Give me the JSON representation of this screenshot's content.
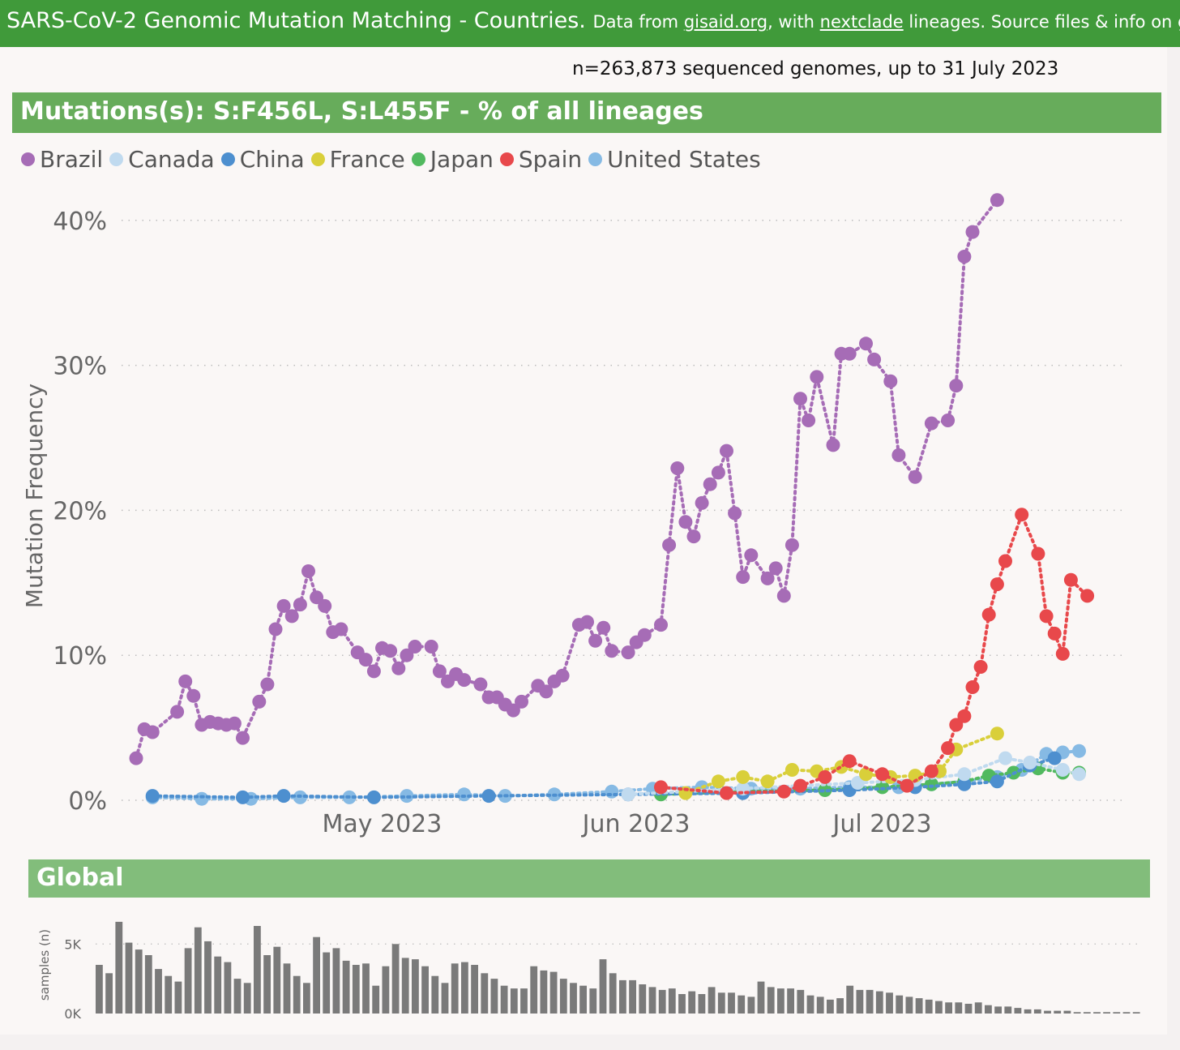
{
  "header": {
    "title": "SARS-CoV-2 Genomic Mutation Matching - Countries.",
    "source_prefix": "Data from",
    "link1": "gisaid.org",
    "mid": ", with",
    "link2": "nextclade",
    "suffix": "lineages. Source files & info on git"
  },
  "subtitle": "n=263,873 sequenced genomes, up to 31 July 2023",
  "panel_title": "Mutations(s): S:F456L, S:L455F - % of all lineages",
  "global_title": "Global",
  "colors": {
    "Brazil": "#a66cb6",
    "Canada": "#c0daef",
    "China": "#4d8fcf",
    "France": "#d9cf3a",
    "Japan": "#51b95f",
    "Spain": "#e8484b",
    "United States": "#86bae4"
  },
  "chart_data": [
    {
      "type": "line",
      "title": "Mutations(s): S:F456L, S:L455F - % of all lineages",
      "ylabel": "Mutation Frequency",
      "xlabel": "",
      "x_ticks": [
        "May 2023",
        "Jun 2023",
        "Jul 2023"
      ],
      "y_ticks": [
        "0%",
        "10%",
        "20%",
        "30%",
        "40%"
      ],
      "ylim": [
        0,
        42
      ],
      "xlim": [
        "2023-04-02",
        "2023-07-30"
      ],
      "grid": "horizontal dotted",
      "legend": "top-left",
      "series": [
        {
          "name": "Brazil",
          "points": [
            [
              "2023-04-02",
              2.9
            ],
            [
              "2023-04-03",
              4.9
            ],
            [
              "2023-04-04",
              4.7
            ],
            [
              "2023-04-07",
              6.1
            ],
            [
              "2023-04-08",
              8.2
            ],
            [
              "2023-04-09",
              7.2
            ],
            [
              "2023-04-10",
              5.2
            ],
            [
              "2023-04-11",
              5.4
            ],
            [
              "2023-04-12",
              5.3
            ],
            [
              "2023-04-13",
              5.2
            ],
            [
              "2023-04-14",
              5.3
            ],
            [
              "2023-04-15",
              4.3
            ],
            [
              "2023-04-17",
              6.8
            ],
            [
              "2023-04-18",
              8.0
            ],
            [
              "2023-04-19",
              11.8
            ],
            [
              "2023-04-20",
              13.4
            ],
            [
              "2023-04-21",
              12.7
            ],
            [
              "2023-04-22",
              13.5
            ],
            [
              "2023-04-23",
              15.8
            ],
            [
              "2023-04-24",
              14.0
            ],
            [
              "2023-04-25",
              13.4
            ],
            [
              "2023-04-26",
              11.6
            ],
            [
              "2023-04-27",
              11.8
            ],
            [
              "2023-04-29",
              10.2
            ],
            [
              "2023-04-30",
              9.7
            ],
            [
              "2023-05-01",
              8.9
            ],
            [
              "2023-05-02",
              10.5
            ],
            [
              "2023-05-03",
              10.3
            ],
            [
              "2023-05-04",
              9.1
            ],
            [
              "2023-05-05",
              10.0
            ],
            [
              "2023-05-06",
              10.6
            ],
            [
              "2023-05-08",
              10.6
            ],
            [
              "2023-05-09",
              8.9
            ],
            [
              "2023-05-10",
              8.2
            ],
            [
              "2023-05-11",
              8.7
            ],
            [
              "2023-05-12",
              8.3
            ],
            [
              "2023-05-14",
              8.0
            ],
            [
              "2023-05-15",
              7.1
            ],
            [
              "2023-05-16",
              7.1
            ],
            [
              "2023-05-17",
              6.6
            ],
            [
              "2023-05-18",
              6.2
            ],
            [
              "2023-05-19",
              6.8
            ],
            [
              "2023-05-21",
              7.9
            ],
            [
              "2023-05-22",
              7.5
            ],
            [
              "2023-05-23",
              8.2
            ],
            [
              "2023-05-24",
              8.6
            ],
            [
              "2023-05-26",
              12.1
            ],
            [
              "2023-05-27",
              12.3
            ],
            [
              "2023-05-28",
              11.0
            ],
            [
              "2023-05-29",
              11.9
            ],
            [
              "2023-05-30",
              10.3
            ],
            [
              "2023-06-01",
              10.2
            ],
            [
              "2023-06-02",
              10.9
            ],
            [
              "2023-06-03",
              11.4
            ],
            [
              "2023-06-05",
              12.1
            ],
            [
              "2023-06-06",
              17.6
            ],
            [
              "2023-06-07",
              22.9
            ],
            [
              "2023-06-08",
              19.2
            ],
            [
              "2023-06-09",
              18.2
            ],
            [
              "2023-06-10",
              20.5
            ],
            [
              "2023-06-11",
              21.8
            ],
            [
              "2023-06-12",
              22.6
            ],
            [
              "2023-06-13",
              24.1
            ],
            [
              "2023-06-14",
              19.8
            ],
            [
              "2023-06-15",
              15.4
            ],
            [
              "2023-06-16",
              16.9
            ],
            [
              "2023-06-18",
              15.3
            ],
            [
              "2023-06-19",
              16.0
            ],
            [
              "2023-06-20",
              14.1
            ],
            [
              "2023-06-21",
              17.6
            ],
            [
              "2023-06-22",
              27.7
            ],
            [
              "2023-06-23",
              26.2
            ],
            [
              "2023-06-24",
              29.2
            ],
            [
              "2023-06-26",
              24.5
            ],
            [
              "2023-06-27",
              30.8
            ],
            [
              "2023-06-28",
              30.8
            ],
            [
              "2023-06-30",
              31.5
            ],
            [
              "2023-07-01",
              30.4
            ],
            [
              "2023-07-03",
              28.9
            ],
            [
              "2023-07-04",
              23.8
            ],
            [
              "2023-07-06",
              22.3
            ],
            [
              "2023-07-08",
              26.0
            ],
            [
              "2023-07-10",
              26.2
            ],
            [
              "2023-07-11",
              28.6
            ],
            [
              "2023-07-12",
              37.5
            ],
            [
              "2023-07-13",
              39.2
            ],
            [
              "2023-07-16",
              41.4
            ]
          ]
        },
        {
          "name": "Spain",
          "points": [
            [
              "2023-06-05",
              0.9
            ],
            [
              "2023-06-13",
              0.5
            ],
            [
              "2023-06-20",
              0.6
            ],
            [
              "2023-06-22",
              1.0
            ],
            [
              "2023-06-25",
              1.6
            ],
            [
              "2023-06-28",
              2.7
            ],
            [
              "2023-07-02",
              1.8
            ],
            [
              "2023-07-05",
              1.0
            ],
            [
              "2023-07-08",
              2.0
            ],
            [
              "2023-07-10",
              3.6
            ],
            [
              "2023-07-11",
              5.2
            ],
            [
              "2023-07-12",
              5.8
            ],
            [
              "2023-07-13",
              7.8
            ],
            [
              "2023-07-14",
              9.2
            ],
            [
              "2023-07-15",
              12.8
            ],
            [
              "2023-07-16",
              14.9
            ],
            [
              "2023-07-17",
              16.5
            ],
            [
              "2023-07-19",
              19.7
            ],
            [
              "2023-07-21",
              17.0
            ],
            [
              "2023-07-22",
              12.7
            ],
            [
              "2023-07-23",
              11.5
            ],
            [
              "2023-07-24",
              10.1
            ],
            [
              "2023-07-25",
              15.2
            ],
            [
              "2023-07-27",
              14.1
            ]
          ]
        },
        {
          "name": "France",
          "points": [
            [
              "2023-06-08",
              0.5
            ],
            [
              "2023-06-12",
              1.3
            ],
            [
              "2023-06-15",
              1.6
            ],
            [
              "2023-06-18",
              1.3
            ],
            [
              "2023-06-21",
              2.1
            ],
            [
              "2023-06-24",
              2.0
            ],
            [
              "2023-06-27",
              2.3
            ],
            [
              "2023-06-30",
              1.8
            ],
            [
              "2023-07-03",
              1.6
            ],
            [
              "2023-07-06",
              1.7
            ],
            [
              "2023-07-09",
              2.0
            ],
            [
              "2023-07-11",
              3.5
            ],
            [
              "2023-07-16",
              4.6
            ]
          ]
        },
        {
          "name": "Canada",
          "points": [
            [
              "2023-06-01",
              0.4
            ],
            [
              "2023-06-15",
              0.8
            ],
            [
              "2023-06-29",
              1.2
            ],
            [
              "2023-07-06",
              1.4
            ],
            [
              "2023-07-12",
              1.8
            ],
            [
              "2023-07-17",
              2.9
            ],
            [
              "2023-07-20",
              2.6
            ],
            [
              "2023-07-24",
              2.1
            ],
            [
              "2023-07-26",
              1.8
            ]
          ]
        },
        {
          "name": "China",
          "points": [
            [
              "2023-04-04",
              0.3
            ],
            [
              "2023-04-15",
              0.2
            ],
            [
              "2023-04-20",
              0.3
            ],
            [
              "2023-05-01",
              0.2
            ],
            [
              "2023-05-15",
              0.3
            ],
            [
              "2023-06-01",
              0.4
            ],
            [
              "2023-06-15",
              0.5
            ],
            [
              "2023-06-28",
              0.7
            ],
            [
              "2023-07-06",
              0.9
            ],
            [
              "2023-07-12",
              1.1
            ],
            [
              "2023-07-16",
              1.3
            ],
            [
              "2023-07-20",
              2.4
            ],
            [
              "2023-07-23",
              2.9
            ]
          ]
        },
        {
          "name": "Japan",
          "points": [
            [
              "2023-06-05",
              0.4
            ],
            [
              "2023-06-15",
              0.6
            ],
            [
              "2023-06-25",
              0.7
            ],
            [
              "2023-07-02",
              0.9
            ],
            [
              "2023-07-08",
              1.1
            ],
            [
              "2023-07-12",
              1.3
            ],
            [
              "2023-07-15",
              1.7
            ],
            [
              "2023-07-18",
              1.9
            ],
            [
              "2023-07-21",
              2.2
            ],
            [
              "2023-07-24",
              1.9
            ],
            [
              "2023-07-26",
              1.9
            ]
          ]
        },
        {
          "name": "United States",
          "points": [
            [
              "2023-04-04",
              0.2
            ],
            [
              "2023-04-10",
              0.1
            ],
            [
              "2023-04-16",
              0.1
            ],
            [
              "2023-04-22",
              0.2
            ],
            [
              "2023-04-28",
              0.2
            ],
            [
              "2023-05-05",
              0.3
            ],
            [
              "2023-05-12",
              0.4
            ],
            [
              "2023-05-17",
              0.3
            ],
            [
              "2023-05-23",
              0.4
            ],
            [
              "2023-05-30",
              0.6
            ],
            [
              "2023-06-04",
              0.8
            ],
            [
              "2023-06-10",
              0.9
            ],
            [
              "2023-06-16",
              0.8
            ],
            [
              "2023-06-22",
              0.8
            ],
            [
              "2023-06-28",
              0.9
            ],
            [
              "2023-07-04",
              0.9
            ],
            [
              "2023-07-08",
              1.1
            ],
            [
              "2023-07-12",
              1.3
            ],
            [
              "2023-07-16",
              1.6
            ],
            [
              "2023-07-19",
              2.1
            ],
            [
              "2023-07-22",
              3.2
            ],
            [
              "2023-07-24",
              3.3
            ],
            [
              "2023-07-26",
              3.4
            ]
          ]
        }
      ]
    },
    {
      "type": "bar",
      "title": "Global",
      "ylabel": "samples (n)",
      "y_ticks": [
        "0K",
        "5K"
      ],
      "ylim": [
        0,
        7000
      ],
      "xlim": [
        "2023-04-02",
        "2023-07-30"
      ],
      "values": [
        3500,
        2900,
        6600,
        5100,
        4600,
        4200,
        3200,
        2700,
        2300,
        4700,
        6200,
        5200,
        4100,
        3700,
        2500,
        2200,
        6300,
        4200,
        4800,
        3600,
        2700,
        2200,
        5500,
        4400,
        4700,
        3800,
        3500,
        3600,
        2000,
        3400,
        5000,
        4000,
        3900,
        3400,
        2700,
        2200,
        3600,
        3700,
        3500,
        2900,
        2500,
        2000,
        1800,
        1800,
        3400,
        3100,
        3000,
        2500,
        2200,
        2000,
        1800,
        3900,
        2900,
        2400,
        2400,
        2100,
        1900,
        1700,
        1800,
        1400,
        1600,
        1400,
        1900,
        1500,
        1500,
        1300,
        1200,
        2300,
        1900,
        1800,
        1800,
        1700,
        1300,
        1200,
        1000,
        1100,
        2000,
        1700,
        1700,
        1600,
        1500,
        1300,
        1200,
        1100,
        1000,
        900,
        800,
        800,
        700,
        800,
        600,
        500,
        500,
        400,
        300,
        300,
        200,
        200,
        200,
        100,
        100,
        100,
        100,
        100,
        100,
        100
      ]
    }
  ]
}
